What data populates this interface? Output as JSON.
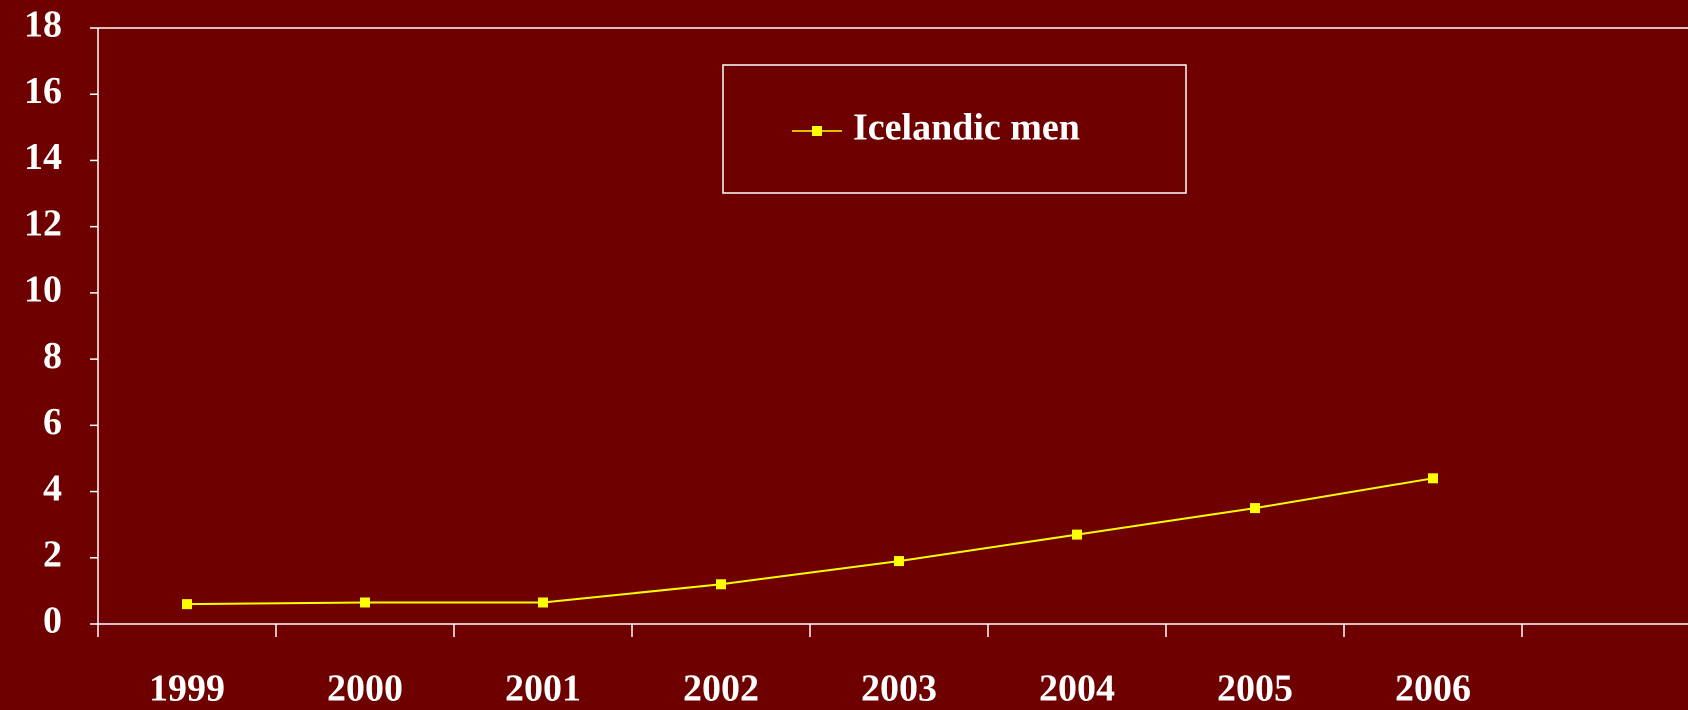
{
  "chart_data": {
    "type": "line",
    "categories": [
      "1999",
      "2000",
      "2001",
      "2002",
      "2003",
      "2004",
      "2005",
      "2006",
      null
    ],
    "series": [
      {
        "name": "Icelandic men",
        "color": "#ffff00",
        "values": [
          0.6,
          0.65,
          0.65,
          1.2,
          1.9,
          2.7,
          3.5,
          4.4,
          null
        ]
      }
    ],
    "ylim": [
      0,
      18
    ],
    "yticks": [
      0,
      2,
      4,
      6,
      8,
      10,
      12,
      14,
      16,
      18
    ],
    "grid": false,
    "legend": "top"
  }
}
